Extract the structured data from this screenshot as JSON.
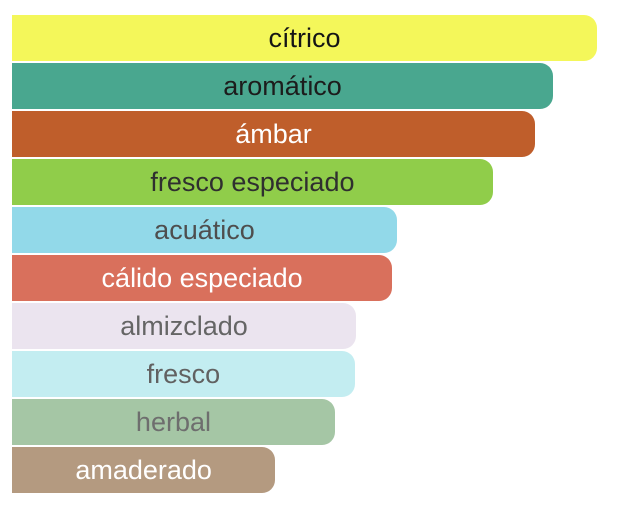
{
  "chart_data": {
    "type": "bar",
    "orientation": "horizontal",
    "title": "",
    "xlabel": "",
    "ylabel": "",
    "legend": false,
    "axes_visible": false,
    "grid": false,
    "background_color": "#ffffff",
    "value_unit": "percent-of-longest-bar",
    "value_range": [
      0,
      100
    ],
    "categories": [
      "cítrico",
      "aromático",
      "ámbar",
      "fresco especiado",
      "acuático",
      "cálido especiado",
      "almizclado",
      "fresco",
      "herbal",
      "amaderado"
    ],
    "values": [
      100,
      92.5,
      89.4,
      82.2,
      65.8,
      65.0,
      58.8,
      58.6,
      55.2,
      45.0
    ],
    "bar_colors": [
      "#f4f75a",
      "#49a78f",
      "#bf5e2b",
      "#90cd4a",
      "#92d9e9",
      "#d9705c",
      "#ebe4ef",
      "#c3edf1",
      "#a5c6a5",
      "#b49a80"
    ],
    "label_colors": [
      "#151515",
      "#1c1c1c",
      "#ffffff",
      "#2f2f2f",
      "#4e4e4e",
      "#ffffff",
      "#656565",
      "#616161",
      "#6e6e6e",
      "#ffffff"
    ],
    "bar_corner_style": "rounded-right-only"
  }
}
